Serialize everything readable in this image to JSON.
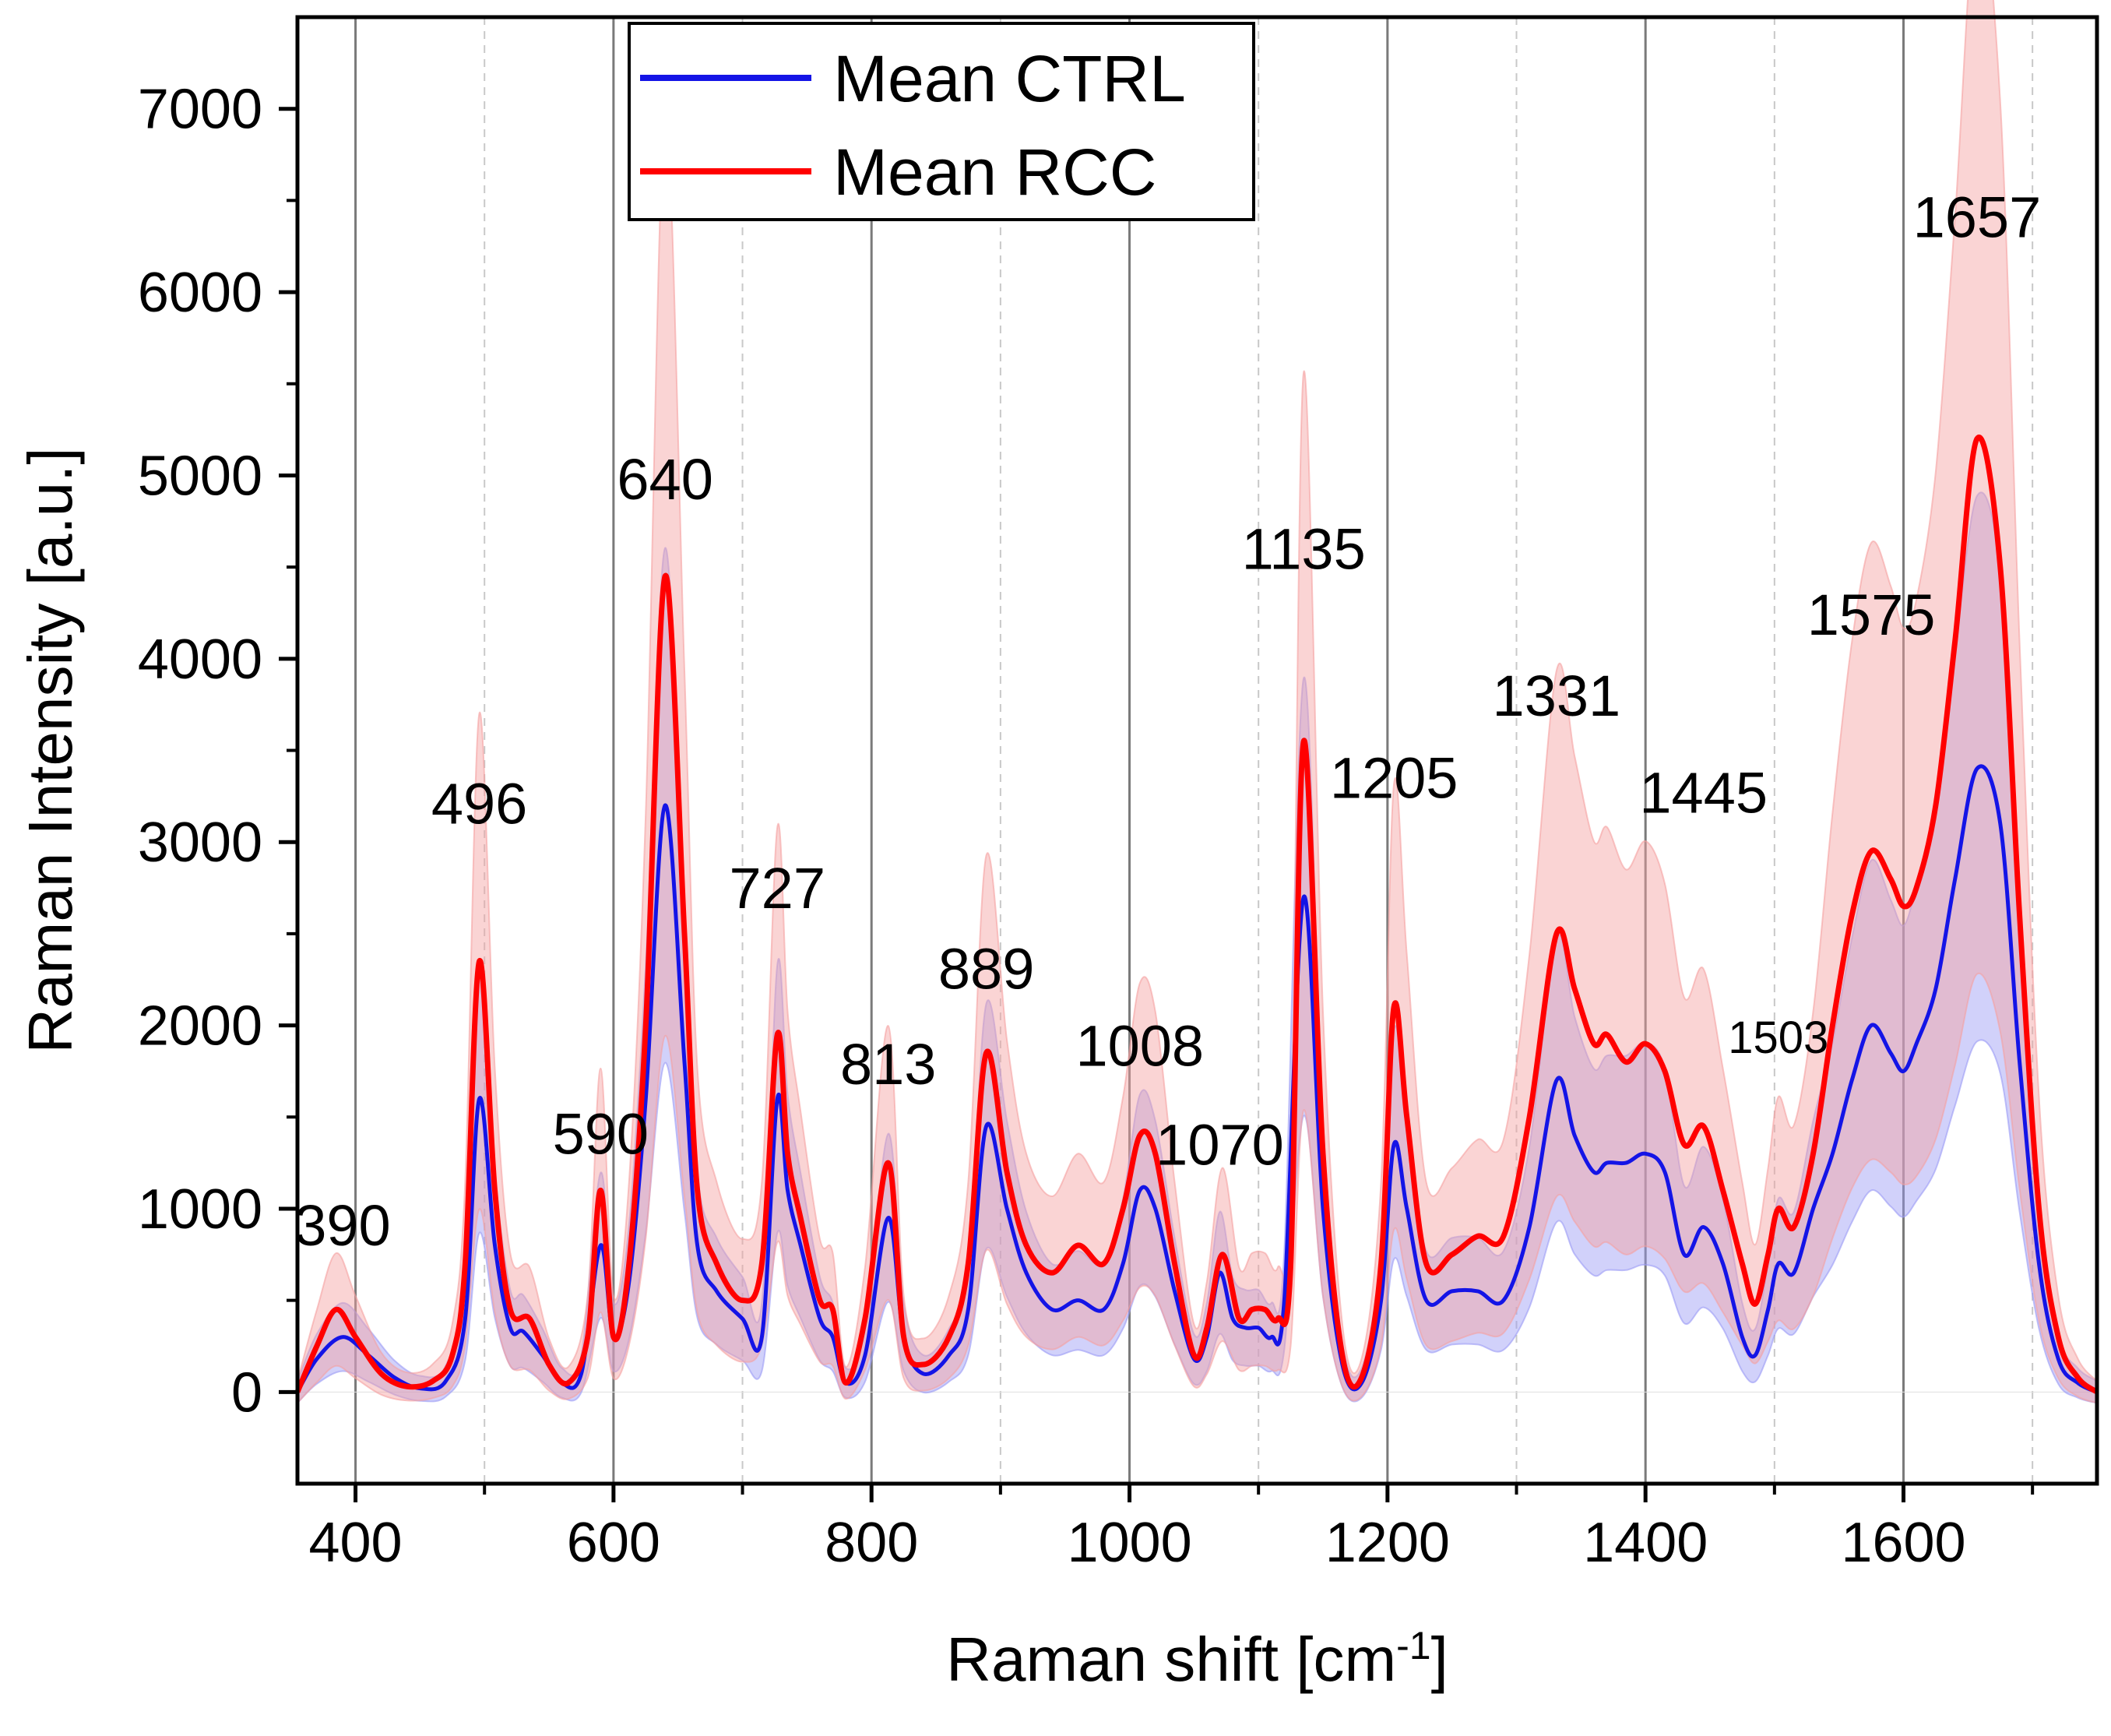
{
  "chart_data": {
    "type": "line",
    "xlabel": "Raman shift [cm",
    "xlabel_sup": "-1",
    "xlabel_end": "]",
    "ylabel": "Raman Intensity [a.u.]",
    "xlim": [
      355,
      1750
    ],
    "ylim": [
      -500,
      7500
    ],
    "x_ticks": [
      400,
      600,
      800,
      1000,
      1200,
      1400,
      1600
    ],
    "x_tick_labels": [
      "400",
      "600",
      "800",
      "1000",
      "1200",
      "1400",
      "1600"
    ],
    "x_minor_ticks": [
      500,
      700,
      900,
      1100,
      1300,
      1500,
      1700
    ],
    "y_ticks": [
      0,
      1000,
      2000,
      3000,
      4000,
      5000,
      6000,
      7000
    ],
    "y_tick_labels": [
      "0",
      "1000",
      "2000",
      "3000",
      "4000",
      "5000",
      "6000",
      "7000"
    ],
    "grid": "vertical lines at major and minor x ticks",
    "legend": {
      "position": "top-left",
      "entries": [
        {
          "label": "Mean CTRL",
          "color": "#1414e6"
        },
        {
          "label": "Mean RCC",
          "color": "#ff0000"
        }
      ]
    },
    "colors": {
      "ctrl": "#1414e6",
      "rcc": "#ff0000",
      "ctrl_band": "#9a9af5",
      "rcc_band": "#f5a0a0",
      "grid_major": "#7a7a7a",
      "grid_minor": "#c8c8c8"
    },
    "series": [
      {
        "name": "Mean CTRL",
        "x": [
          355,
          370,
          390,
          410,
          430,
          450,
          470,
          485,
          496,
          508,
          520,
          530,
          545,
          560,
          575,
          590,
          600,
          612,
          625,
          640,
          655,
          665,
          680,
          700,
          715,
          727,
          735,
          745,
          760,
          770,
          780,
          795,
          813,
          825,
          840,
          860,
          875,
          889,
          905,
          920,
          940,
          960,
          980,
          995,
          1008,
          1020,
          1035,
          1050,
          1060,
          1070,
          1080,
          1090,
          1100,
          1110,
          1120,
          1135,
          1150,
          1165,
          1180,
          1195,
          1205,
          1215,
          1230,
          1250,
          1270,
          1290,
          1310,
          1331,
          1345,
          1360,
          1370,
          1385,
          1400,
          1415,
          1430,
          1445,
          1460,
          1475,
          1485,
          1495,
          1503,
          1515,
          1530,
          1545,
          1560,
          1575,
          1590,
          1600,
          1610,
          1625,
          1640,
          1657,
          1675,
          1690,
          1705,
          1720,
          1735,
          1750
        ],
        "values": [
          0,
          180,
          300,
          200,
          80,
          20,
          60,
          400,
          1600,
          800,
          350,
          330,
          200,
          50,
          100,
          800,
          300,
          600,
          1600,
          3200,
          1800,
          800,
          550,
          400,
          300,
          1600,
          1100,
          800,
          400,
          300,
          50,
          200,
          950,
          300,
          100,
          200,
          450,
          1450,
          1000,
          650,
          450,
          500,
          450,
          700,
          1100,
          1000,
          550,
          180,
          300,
          650,
          400,
          350,
          350,
          300,
          500,
          2700,
          1000,
          150,
          50,
          500,
          1350,
          1000,
          500,
          550,
          550,
          500,
          900,
          1700,
          1400,
          1200,
          1250,
          1250,
          1300,
          1200,
          750,
          900,
          700,
          300,
          200,
          450,
          700,
          650,
          1000,
          1300,
          1700,
          2000,
          1850,
          1750,
          1900,
          2200,
          2800,
          3400,
          3100,
          1800,
          700,
          180,
          50,
          0
        ]
      },
      {
        "name": "Mean RCC",
        "x": [
          355,
          370,
          385,
          400,
          420,
          440,
          460,
          475,
          485,
          496,
          508,
          520,
          535,
          550,
          565,
          580,
          590,
          600,
          612,
          625,
          640,
          655,
          665,
          680,
          700,
          715,
          727,
          735,
          745,
          760,
          770,
          780,
          795,
          813,
          825,
          840,
          860,
          875,
          889,
          905,
          920,
          940,
          960,
          980,
          995,
          1008,
          1020,
          1035,
          1050,
          1060,
          1072,
          1085,
          1095,
          1105,
          1115,
          1125,
          1135,
          1150,
          1165,
          1180,
          1195,
          1205,
          1215,
          1230,
          1250,
          1270,
          1290,
          1310,
          1331,
          1345,
          1360,
          1370,
          1385,
          1400,
          1415,
          1430,
          1445,
          1460,
          1475,
          1485,
          1495,
          1503,
          1515,
          1530,
          1545,
          1560,
          1575,
          1590,
          1600,
          1610,
          1625,
          1640,
          1657,
          1675,
          1690,
          1705,
          1720,
          1735,
          1750
        ],
        "values": [
          0,
          250,
          450,
          300,
          100,
          30,
          60,
          200,
          700,
          2350,
          1100,
          450,
          400,
          150,
          50,
          300,
          1100,
          300,
          700,
          2000,
          4450,
          2500,
          1100,
          700,
          500,
          700,
          1950,
          1300,
          950,
          500,
          450,
          50,
          400,
          1250,
          300,
          150,
          300,
          700,
          1850,
          1200,
          800,
          650,
          800,
          700,
          1000,
          1400,
          1300,
          700,
          200,
          350,
          750,
          400,
          450,
          450,
          400,
          700,
          3550,
          1300,
          200,
          80,
          700,
          2100,
          1500,
          700,
          750,
          850,
          850,
          1500,
          2500,
          2200,
          1900,
          1950,
          1800,
          1900,
          1750,
          1350,
          1450,
          1100,
          700,
          480,
          750,
          1000,
          900,
          1300,
          2000,
          2600,
          2950,
          2800,
          2650,
          2750,
          3200,
          4100,
          5200,
          4500,
          2600,
          1000,
          300,
          80,
          0
        ]
      }
    ],
    "peak_labels": [
      {
        "text": "390",
        "x": 390,
        "y": 800
      },
      {
        "text": "496",
        "x": 496,
        "y": 3100
      },
      {
        "text": "590",
        "x": 590,
        "y": 1300
      },
      {
        "text": "640",
        "x": 640,
        "y": 4870
      },
      {
        "text": "727",
        "x": 727,
        "y": 2640
      },
      {
        "text": "813",
        "x": 813,
        "y": 1680
      },
      {
        "text": "889",
        "x": 889,
        "y": 2200
      },
      {
        "text": "1008",
        "x": 1008,
        "y": 1780
      },
      {
        "text": "1070",
        "x": 1070,
        "y": 1240
      },
      {
        "text": "1135",
        "x": 1135,
        "y": 4490
      },
      {
        "text": "1205",
        "x": 1205,
        "y": 3240
      },
      {
        "text": "1331",
        "x": 1331,
        "y": 3690
      },
      {
        "text": "1445",
        "x": 1445,
        "y": 3160
      },
      {
        "text": "1503",
        "x": 1503,
        "y": 1850
      },
      {
        "text": "1575",
        "x": 1575,
        "y": 4130
      },
      {
        "text": "1657",
        "x": 1657,
        "y": 6300
      }
    ]
  }
}
